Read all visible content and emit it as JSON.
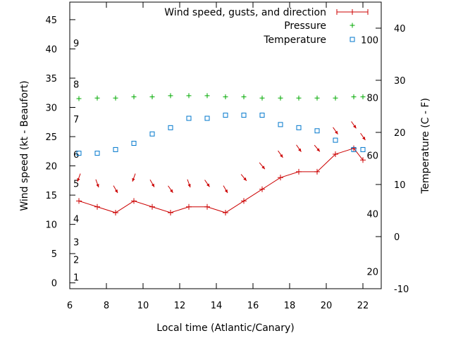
{
  "chart_data": {
    "type": "line",
    "xlabel": "Local time (Atlantic/Canary)",
    "ylabel": "Wind speed (kt - Beaufort)",
    "y2label": "Temperature (C - F)",
    "xlim": [
      6,
      23
    ],
    "ylim": [
      -1,
      48
    ],
    "y2lim": [
      -10,
      45
    ],
    "x_ticks": [
      6,
      8,
      10,
      12,
      14,
      16,
      18,
      20,
      22
    ],
    "y_ticks": [
      0,
      5,
      10,
      15,
      20,
      25,
      30,
      35,
      40,
      45
    ],
    "y2_ticks": [
      -10,
      0,
      10,
      20,
      30,
      40
    ],
    "beaufort_labels": [
      {
        "label": "1",
        "y": 1
      },
      {
        "label": "2",
        "y": 4
      },
      {
        "label": "3",
        "y": 7
      },
      {
        "label": "4",
        "y": 11
      },
      {
        "label": "5",
        "y": 17
      },
      {
        "label": "6",
        "y": 22
      },
      {
        "label": "7",
        "y": 28
      },
      {
        "label": "8",
        "y": 34
      },
      {
        "label": "9",
        "y": 41
      }
    ],
    "fahrenheit_labels": [
      {
        "label": "20",
        "y2": -6.7
      },
      {
        "label": "40",
        "y2": 4.4
      },
      {
        "label": "60",
        "y2": 15.6
      },
      {
        "label": "80",
        "y2": 26.7
      },
      {
        "label": "100",
        "y2": 37.8
      }
    ],
    "legend": {
      "wind": "Wind speed, gusts, and direction",
      "pressure": "Pressure",
      "temperature": "Temperature"
    },
    "colors": {
      "wind": "#cc0000",
      "pressure": "#00aa00",
      "temperature": "#0077cc"
    },
    "wind_speed": {
      "x": [
        6.5,
        7.5,
        8.5,
        9.5,
        10.5,
        11.5,
        12.5,
        13.5,
        14.5,
        15.5,
        16.5,
        17.5,
        18.5,
        19.5,
        20.5,
        21.5,
        22
      ],
      "y": [
        14,
        13,
        12,
        14,
        13,
        12,
        13,
        13,
        12,
        14,
        16,
        18,
        19,
        19,
        22,
        23,
        21
      ]
    },
    "wind_direction": {
      "x": [
        6.5,
        7.5,
        8.5,
        9.5,
        10.5,
        11.5,
        12.5,
        13.5,
        14.5,
        15.5,
        16.5,
        17.5,
        18.5,
        19.5,
        20.5,
        21.5,
        22
      ],
      "y": [
        18,
        17,
        16,
        18,
        17,
        16,
        17,
        17,
        16,
        18,
        20,
        22,
        23,
        23,
        26,
        27,
        25
      ],
      "angle_deg": [
        200,
        160,
        150,
        200,
        150,
        145,
        160,
        145,
        150,
        140,
        140,
        145,
        145,
        140,
        145,
        145,
        145
      ]
    },
    "pressure": {
      "x": [
        6.5,
        7.5,
        8.5,
        9.5,
        10.5,
        11.5,
        12.5,
        13.5,
        14.5,
        15.5,
        16.5,
        17.5,
        18.5,
        19.5,
        20.5,
        21.5,
        22
      ],
      "y": [
        31.5,
        31.6,
        31.6,
        31.8,
        31.8,
        32,
        32,
        32,
        31.8,
        31.8,
        31.6,
        31.6,
        31.6,
        31.6,
        31.6,
        31.8,
        31.8
      ]
    },
    "temperature": {
      "x": [
        6.5,
        7.5,
        8.5,
        9.5,
        10.5,
        11.5,
        12.5,
        13.5,
        14.5,
        15.5,
        16.5,
        17.5,
        18.5,
        19.5,
        20.5,
        21.5,
        22
      ],
      "y2": [
        16,
        16,
        16.7,
        17.9,
        19.7,
        20.9,
        22.7,
        22.7,
        23.3,
        23.3,
        23.3,
        21.5,
        20.9,
        20.3,
        18.5,
        16.7,
        16.7
      ]
    }
  }
}
